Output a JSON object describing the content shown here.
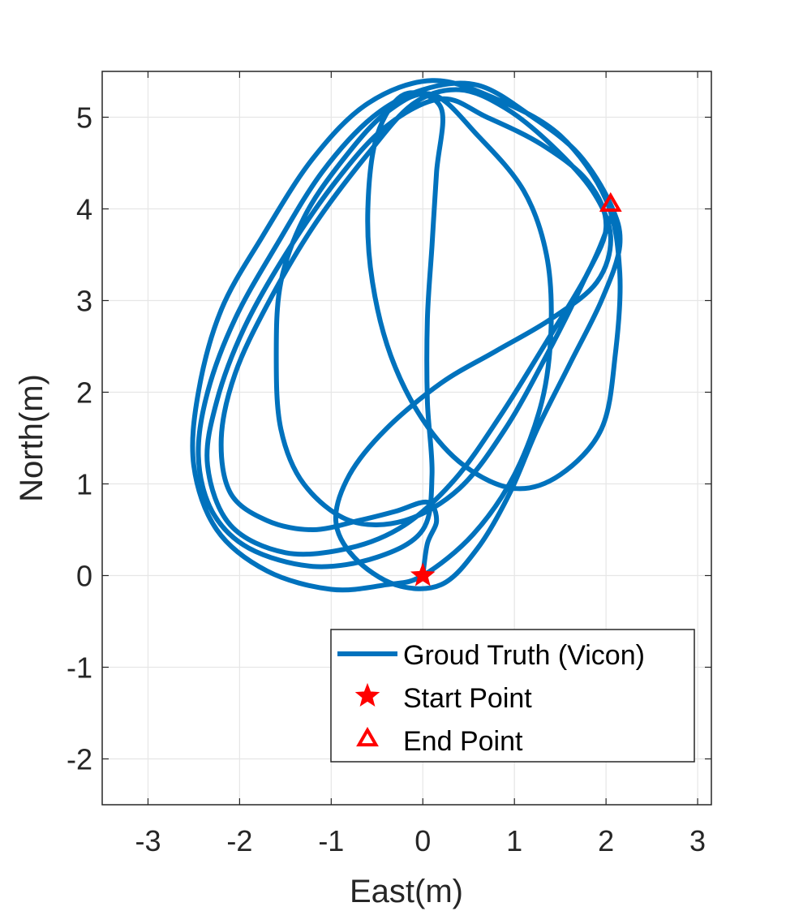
{
  "chart_data": {
    "type": "line",
    "title": "",
    "xlabel": "East(m)",
    "ylabel": "North(m)",
    "xlim": [
      -3.5,
      3.15
    ],
    "ylim": [
      -2.5,
      5.5
    ],
    "xticks": [
      -3,
      -2,
      -1,
      0,
      1,
      2,
      3
    ],
    "yticks": [
      -2,
      -1,
      0,
      1,
      2,
      3,
      4,
      5
    ],
    "grid": true,
    "legend_position": "bottom-right",
    "colors": {
      "trajectory": "#0072BD",
      "markers": "#FF0000",
      "grid": "#e6e6e6",
      "axes": "#262626"
    },
    "series": [
      {
        "name": "Groud Truth (Vicon)",
        "style": "line",
        "points": [
          [
            0.0,
            0.0
          ],
          [
            0.05,
            0.35
          ],
          [
            0.15,
            0.6
          ],
          [
            0.05,
            0.8
          ],
          [
            -0.3,
            0.7
          ],
          [
            -0.7,
            0.6
          ],
          [
            -1.2,
            0.5
          ],
          [
            -1.7,
            0.6
          ],
          [
            -2.1,
            0.9
          ],
          [
            -2.2,
            1.5
          ],
          [
            -2.05,
            2.2
          ],
          [
            -1.7,
            2.95
          ],
          [
            -1.2,
            3.8
          ],
          [
            -0.6,
            4.6
          ],
          [
            -0.1,
            5.15
          ],
          [
            0.4,
            5.3
          ],
          [
            0.9,
            5.1
          ],
          [
            1.4,
            4.7
          ],
          [
            1.85,
            4.2
          ],
          [
            2.05,
            3.7
          ],
          [
            1.9,
            3.2
          ],
          [
            1.4,
            2.8
          ],
          [
            0.8,
            2.45
          ],
          [
            0.2,
            2.1
          ],
          [
            -0.4,
            1.6
          ],
          [
            -0.8,
            1.1
          ],
          [
            -0.95,
            0.6
          ],
          [
            -0.75,
            0.2
          ],
          [
            -0.3,
            -0.1
          ],
          [
            0.2,
            -0.1
          ],
          [
            0.6,
            0.3
          ],
          [
            0.95,
            0.9
          ],
          [
            1.25,
            1.6
          ],
          [
            1.6,
            2.3
          ],
          [
            1.95,
            3.0
          ],
          [
            2.15,
            3.6
          ],
          [
            2.05,
            4.05
          ],
          [
            1.7,
            4.6
          ],
          [
            1.2,
            5.0
          ],
          [
            0.6,
            5.35
          ],
          [
            0.0,
            5.3
          ],
          [
            -0.55,
            5.0
          ],
          [
            -1.1,
            4.4
          ],
          [
            -1.6,
            3.6
          ],
          [
            -2.05,
            2.8
          ],
          [
            -2.35,
            2.0
          ],
          [
            -2.45,
            1.3
          ],
          [
            -2.3,
            0.7
          ],
          [
            -1.9,
            0.3
          ],
          [
            -1.2,
            0.1
          ],
          [
            -0.5,
            0.2
          ],
          [
            0.0,
            0.5
          ],
          [
            0.1,
            1.1
          ],
          [
            0.05,
            1.9
          ],
          [
            0.05,
            2.8
          ],
          [
            0.1,
            3.6
          ],
          [
            0.15,
            4.4
          ],
          [
            0.2,
            5.1
          ],
          [
            -0.2,
            5.25
          ],
          [
            -0.5,
            4.8
          ],
          [
            -0.6,
            4.0
          ],
          [
            -0.55,
            3.2
          ],
          [
            -0.35,
            2.4
          ],
          [
            0.0,
            1.7
          ],
          [
            0.45,
            1.2
          ],
          [
            1.0,
            0.95
          ],
          [
            1.5,
            1.1
          ],
          [
            1.95,
            1.6
          ],
          [
            2.1,
            2.4
          ],
          [
            2.15,
            3.3
          ],
          [
            2.0,
            4.1
          ],
          [
            1.5,
            4.8
          ],
          [
            0.8,
            5.2
          ],
          [
            0.1,
            5.4
          ],
          [
            -0.6,
            5.15
          ],
          [
            -1.2,
            4.55
          ],
          [
            -1.75,
            3.7
          ],
          [
            -2.2,
            2.9
          ],
          [
            -2.45,
            2.0
          ],
          [
            -2.5,
            1.2
          ],
          [
            -2.25,
            0.5
          ],
          [
            -1.7,
            0.05
          ],
          [
            -1.0,
            -0.15
          ],
          [
            -0.4,
            -0.1
          ],
          [
            0.0,
            0.0
          ],
          [
            0.55,
            0.45
          ],
          [
            1.0,
            1.1
          ],
          [
            1.3,
            1.9
          ],
          [
            1.4,
            2.7
          ],
          [
            1.35,
            3.5
          ],
          [
            1.1,
            4.2
          ],
          [
            0.6,
            4.8
          ],
          [
            0.1,
            5.25
          ],
          [
            -0.4,
            5.05
          ],
          [
            -0.9,
            4.5
          ],
          [
            -1.3,
            3.9
          ],
          [
            -1.55,
            3.2
          ],
          [
            -1.6,
            2.4
          ],
          [
            -1.55,
            1.6
          ],
          [
            -1.3,
            1.0
          ],
          [
            -0.8,
            0.6
          ],
          [
            -0.2,
            0.6
          ],
          [
            0.4,
            0.95
          ],
          [
            0.9,
            1.6
          ],
          [
            1.35,
            2.4
          ],
          [
            1.75,
            3.2
          ],
          [
            2.0,
            3.8
          ],
          [
            1.8,
            4.3
          ],
          [
            1.3,
            4.7
          ],
          [
            0.7,
            5.0
          ],
          [
            0.2,
            5.2
          ],
          [
            -0.4,
            4.9
          ],
          [
            -0.95,
            4.3
          ],
          [
            -1.5,
            3.5
          ],
          [
            -1.95,
            2.7
          ],
          [
            -2.25,
            1.9
          ],
          [
            -2.35,
            1.2
          ],
          [
            -2.1,
            0.55
          ],
          [
            -1.5,
            0.25
          ],
          [
            -0.8,
            0.3
          ],
          [
            -0.2,
            0.55
          ],
          [
            0.35,
            1.05
          ],
          [
            0.85,
            1.75
          ],
          [
            1.35,
            2.55
          ],
          [
            1.8,
            3.3
          ],
          [
            2.05,
            3.9
          ],
          [
            2.05,
            4.05
          ]
        ]
      },
      {
        "name": "Start Point",
        "style": "marker-star",
        "points": [
          [
            0.0,
            0.0
          ]
        ]
      },
      {
        "name": "End Point",
        "style": "marker-triangle",
        "points": [
          [
            2.05,
            4.05
          ]
        ]
      }
    ]
  }
}
